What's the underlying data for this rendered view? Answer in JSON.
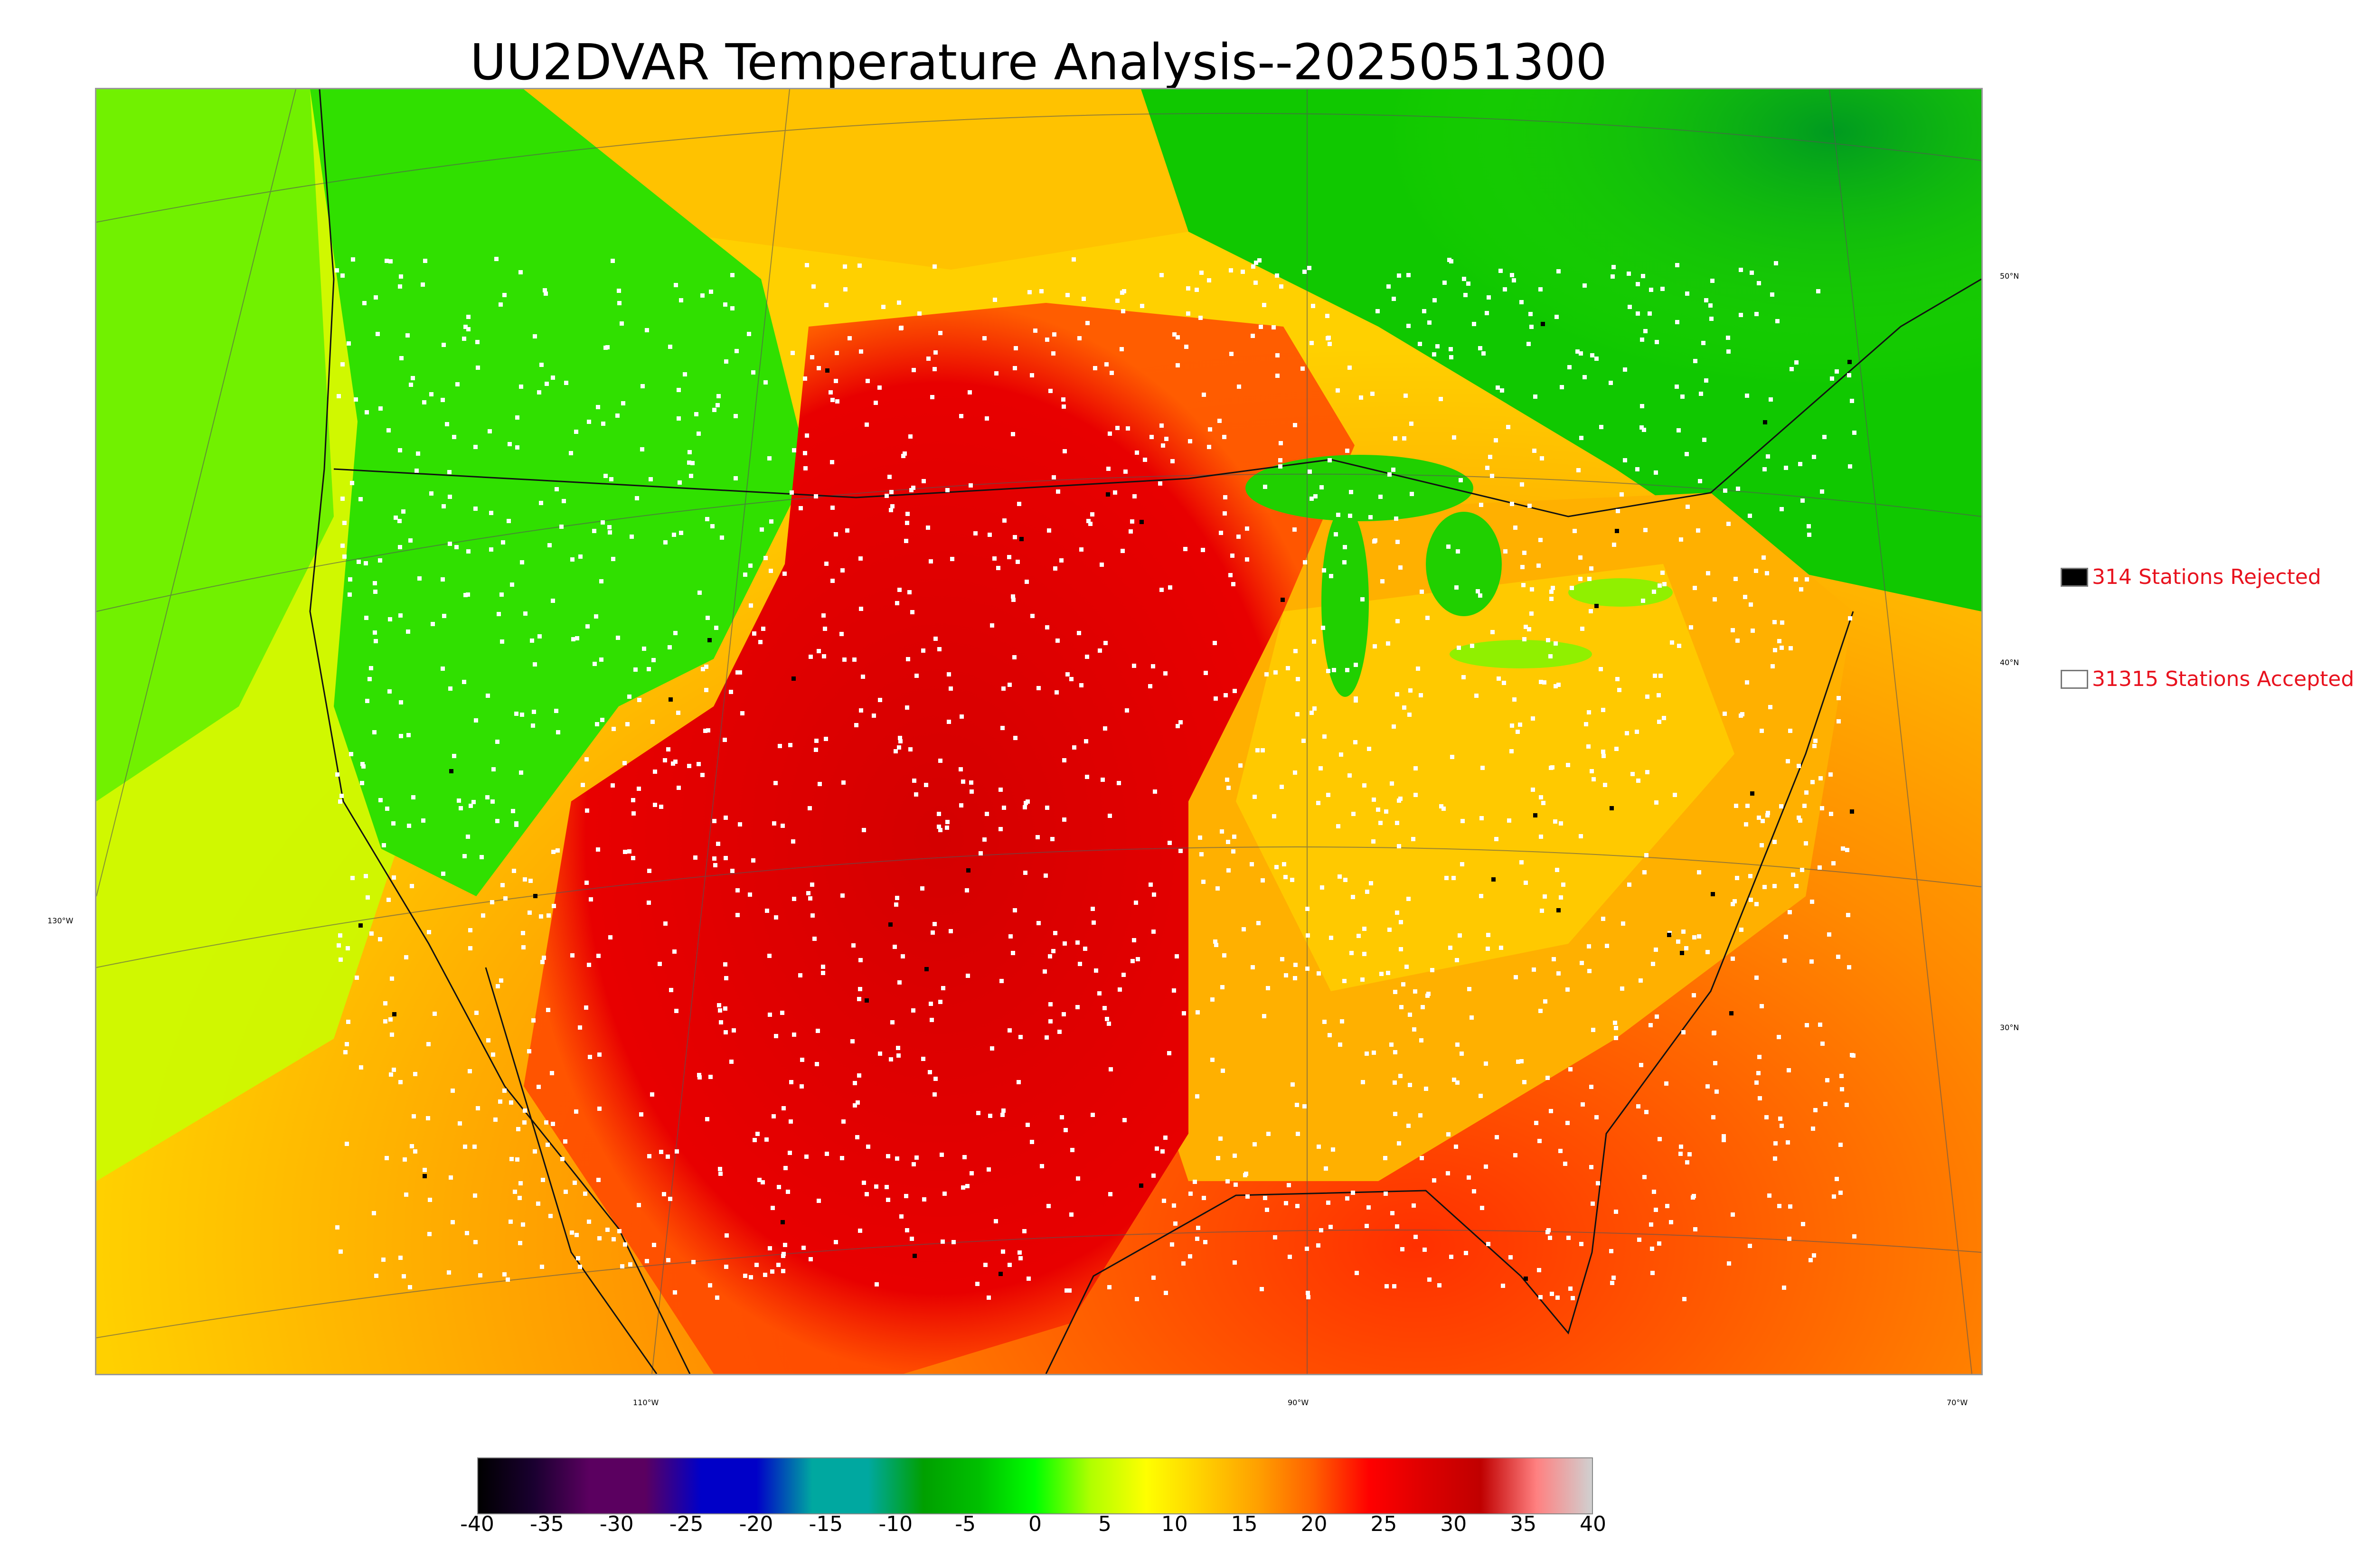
{
  "title": "UU2DVAR Temperature Analysis--2025051300",
  "axis_labels": {
    "lon_130": "130°W",
    "lon_110": "110°W",
    "lon_90": "90°W",
    "lon_70": "70°W",
    "lat_50": "50°N",
    "lat_40": "40°N",
    "lat_30": "30°N"
  },
  "legend": {
    "rejected": {
      "label": "314 Stations Rejected",
      "color": "#000000"
    },
    "accepted": {
      "label": "31315 Stations Accepted",
      "color": "#ffffff"
    }
  },
  "colorbar": {
    "ticks": [
      "-40",
      "-35",
      "-30",
      "-25",
      "-20",
      "-15",
      "-10",
      "-5",
      "0",
      "5",
      "10",
      "15",
      "20",
      "25",
      "30",
      "35",
      "40"
    ],
    "range": [
      -40,
      40
    ],
    "stops": [
      "#000000",
      "#1a0030",
      "#5b0060",
      "#5b0060",
      "#0000c8",
      "#0000c8",
      "#00a8a0",
      "#00a8a0",
      "#00a000",
      "#00c000",
      "#00ff00",
      "#b0ff00",
      "#ffff00",
      "#ffd000",
      "#ffa000",
      "#ff6000",
      "#ff0000",
      "#dd0000",
      "#c00000",
      "#ff8080",
      "#d0d0d0"
    ]
  },
  "colors": {
    "cold": "#00cc00",
    "mild": "#ffff00",
    "warm": "#ffa000",
    "hot": "#e00000",
    "legend_text": "#e8121e"
  }
}
